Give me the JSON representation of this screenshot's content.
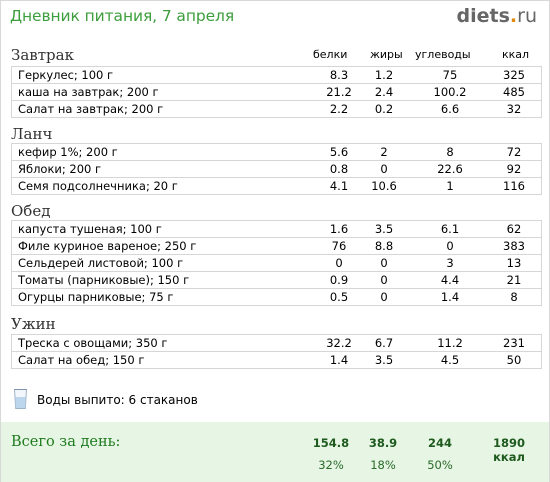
{
  "header": {
    "title": "Дневник питания, 7 апреля",
    "logo_main": "diets",
    "logo_dot": ".",
    "logo_tld": "ru"
  },
  "columns": {
    "protein": "белки",
    "fat": "жиры",
    "carbs": "углеводы",
    "kcal": "ккал"
  },
  "meals": [
    {
      "name": "Завтрак",
      "items": [
        {
          "name": "Геркулес; 100 г",
          "protein": "8.3",
          "fat": "1.2",
          "carbs": "75",
          "kcal": "325"
        },
        {
          "name": "каша на завтрак; 200 г",
          "protein": "21.2",
          "fat": "2.4",
          "carbs": "100.2",
          "kcal": "485"
        },
        {
          "name": "Салат на завтрак; 200 г",
          "protein": "2.2",
          "fat": "0.2",
          "carbs": "6.6",
          "kcal": "32"
        }
      ]
    },
    {
      "name": "Ланч",
      "items": [
        {
          "name": "кефир 1%; 200 г",
          "protein": "5.6",
          "fat": "2",
          "carbs": "8",
          "kcal": "72"
        },
        {
          "name": "Яблоки; 200 г",
          "protein": "0.8",
          "fat": "0",
          "carbs": "22.6",
          "kcal": "92"
        },
        {
          "name": "Семя подсолнечника; 20 г",
          "protein": "4.1",
          "fat": "10.6",
          "carbs": "1",
          "kcal": "116"
        }
      ]
    },
    {
      "name": "Обед",
      "items": [
        {
          "name": "капуста тушеная; 100 г",
          "protein": "1.6",
          "fat": "3.5",
          "carbs": "6.1",
          "kcal": "62"
        },
        {
          "name": "Филе куриное вареное; 250 г",
          "protein": "76",
          "fat": "8.8",
          "carbs": "0",
          "kcal": "383"
        },
        {
          "name": "Сельдерей листовой; 100 г",
          "protein": "0",
          "fat": "0",
          "carbs": "3",
          "kcal": "13"
        },
        {
          "name": "Томаты (парниковые); 150 г",
          "protein": "0.9",
          "fat": "0",
          "carbs": "4.4",
          "kcal": "21"
        },
        {
          "name": "Огурцы парниковые; 75 г",
          "protein": "0.5",
          "fat": "0",
          "carbs": "1.4",
          "kcal": "8"
        }
      ]
    },
    {
      "name": "Ужин",
      "items": [
        {
          "name": "Треска с овощами; 350 г",
          "protein": "32.2",
          "fat": "6.7",
          "carbs": "11.2",
          "kcal": "231"
        },
        {
          "name": "Салат на обед; 150 г",
          "protein": "1.4",
          "fat": "3.5",
          "carbs": "4.5",
          "kcal": "50"
        }
      ]
    }
  ],
  "water": {
    "icon": "glass-icon",
    "text": "Воды выпито: 6 стаканов"
  },
  "total": {
    "label": "Всего за день:",
    "protein": "154.8",
    "fat": "38.9",
    "carbs": "244",
    "kcal": "1890 ккал",
    "protein_pct": "32%",
    "fat_pct": "18%",
    "carbs_pct": "50%"
  }
}
